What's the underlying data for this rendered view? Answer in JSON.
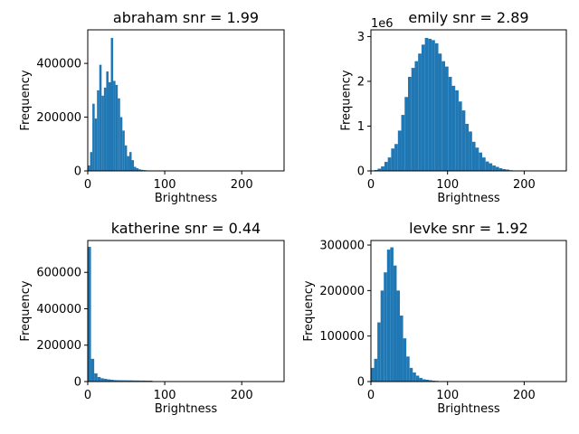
{
  "chart_data": [
    {
      "type": "bar",
      "title": "abraham snr = 1.99",
      "xlabel": "Brightness",
      "ylabel": "Frequency",
      "xlim": [
        0,
        255
      ],
      "ylim": [
        0,
        525000
      ],
      "xticks": [
        0,
        100,
        200
      ],
      "xtick_labels": [
        "0",
        "100",
        "200"
      ],
      "yticks": [
        0,
        200000,
        400000
      ],
      "ytick_labels": [
        "0",
        "200000",
        "400000"
      ],
      "y_offset_label": "",
      "color": "#1f77b4",
      "bin_width": 3,
      "bin_starts": [
        0,
        3,
        6,
        9,
        12,
        15,
        18,
        21,
        24,
        27,
        30,
        33,
        36,
        39,
        42,
        45,
        48,
        51,
        54,
        57,
        60,
        63,
        66,
        69,
        72,
        75,
        78,
        81,
        84,
        87,
        90,
        93,
        96,
        99
      ],
      "values": [
        20000,
        70000,
        250000,
        195000,
        300000,
        395000,
        280000,
        310000,
        370000,
        330000,
        495000,
        335000,
        320000,
        270000,
        200000,
        150000,
        95000,
        55000,
        70000,
        40000,
        15000,
        10000,
        6000,
        4000,
        3000,
        2000,
        1500,
        1200,
        1000,
        800,
        600,
        500,
        400,
        300
      ]
    },
    {
      "type": "bar",
      "title": "emily snr = 2.89",
      "xlabel": "Brightness",
      "ylabel": "Frequency",
      "xlim": [
        0,
        255
      ],
      "ylim": [
        0,
        3.15
      ],
      "xticks": [
        0,
        100,
        200
      ],
      "xtick_labels": [
        "0",
        "100",
        "200"
      ],
      "yticks": [
        0,
        1,
        2,
        3
      ],
      "ytick_labels": [
        "0",
        "1",
        "2",
        "3"
      ],
      "y_offset_label": "1e6",
      "color": "#1f77b4",
      "bin_width": 4.4,
      "bin_starts": [
        0,
        4.4,
        8.8,
        13.2,
        17.6,
        22,
        26.4,
        30.8,
        35.2,
        39.6,
        44,
        48.4,
        52.8,
        57.2,
        61.6,
        66,
        70.4,
        74.8,
        79.2,
        83.6,
        88,
        92.4,
        96.8,
        101.2,
        105.6,
        110,
        114.4,
        118.8,
        123.2,
        127.6,
        132,
        136.4,
        140.8,
        145.2,
        149.6,
        154,
        158.4,
        162.8,
        167.2,
        171.6,
        176,
        180.4,
        184.8,
        189.2,
        193.6
      ],
      "values": [
        0.003,
        0.02,
        0.05,
        0.1,
        0.2,
        0.3,
        0.5,
        0.6,
        0.9,
        1.25,
        1.65,
        2.1,
        2.3,
        2.45,
        2.62,
        2.82,
        2.97,
        2.95,
        2.92,
        2.85,
        2.62,
        2.45,
        2.33,
        2.1,
        1.9,
        1.8,
        1.55,
        1.35,
        1.05,
        0.88,
        0.65,
        0.52,
        0.41,
        0.3,
        0.21,
        0.17,
        0.12,
        0.09,
        0.06,
        0.04,
        0.03,
        0.015,
        0.01,
        0.005,
        0.002
      ]
    },
    {
      "type": "bar",
      "title": "katherine snr = 0.44",
      "xlabel": "Brightness",
      "ylabel": "Frequency",
      "xlim": [
        0,
        255
      ],
      "ylim": [
        0,
        775000
      ],
      "xticks": [
        0,
        100,
        200
      ],
      "xtick_labels": [
        "0",
        "100",
        "200"
      ],
      "yticks": [
        0,
        200000,
        400000,
        600000
      ],
      "ytick_labels": [
        "0",
        "200000",
        "400000",
        "600000"
      ],
      "y_offset_label": "",
      "color": "#1f77b4",
      "bin_width": 4.2,
      "bin_starts": [
        0,
        4.2,
        8.4,
        12.6,
        16.8,
        21,
        25.2,
        29.4,
        33.6,
        37.8,
        42,
        46.2,
        50.4,
        54.6,
        58.8,
        63,
        67.2,
        71.4,
        75.6,
        79.8,
        84,
        88.2,
        92.4,
        96.6
      ],
      "values": [
        740000,
        125000,
        45000,
        25000,
        18000,
        15000,
        12000,
        10000,
        8000,
        7500,
        7000,
        7000,
        6500,
        6500,
        6000,
        6000,
        5500,
        5500,
        5000,
        5000,
        1500,
        800,
        500,
        300
      ]
    },
    {
      "type": "bar",
      "title": "levke snr = 1.92",
      "xlabel": "Brightness",
      "ylabel": "Frequency",
      "xlim": [
        0,
        255
      ],
      "ylim": [
        0,
        310000
      ],
      "xticks": [
        0,
        100,
        200
      ],
      "xtick_labels": [
        "0",
        "100",
        "200"
      ],
      "yticks": [
        0,
        100000,
        200000,
        300000
      ],
      "ytick_labels": [
        "0",
        "100000",
        "200000",
        "300000"
      ],
      "y_offset_label": "",
      "color": "#1f77b4",
      "bin_width": 4.2,
      "bin_starts": [
        0,
        4.2,
        8.4,
        12.6,
        16.8,
        21,
        25.2,
        29.4,
        33.6,
        37.8,
        42,
        46.2,
        50.4,
        54.6,
        58.8,
        63,
        67.2,
        71.4,
        75.6,
        79.8,
        84,
        88.2,
        92.4,
        96.6,
        100.8,
        105
      ],
      "values": [
        30000,
        50000,
        130000,
        200000,
        240000,
        290000,
        295000,
        255000,
        200000,
        145000,
        95000,
        55000,
        30000,
        20000,
        13000,
        8000,
        5000,
        4000,
        3000,
        2000,
        1500,
        1000,
        800,
        600,
        400,
        300
      ]
    }
  ]
}
